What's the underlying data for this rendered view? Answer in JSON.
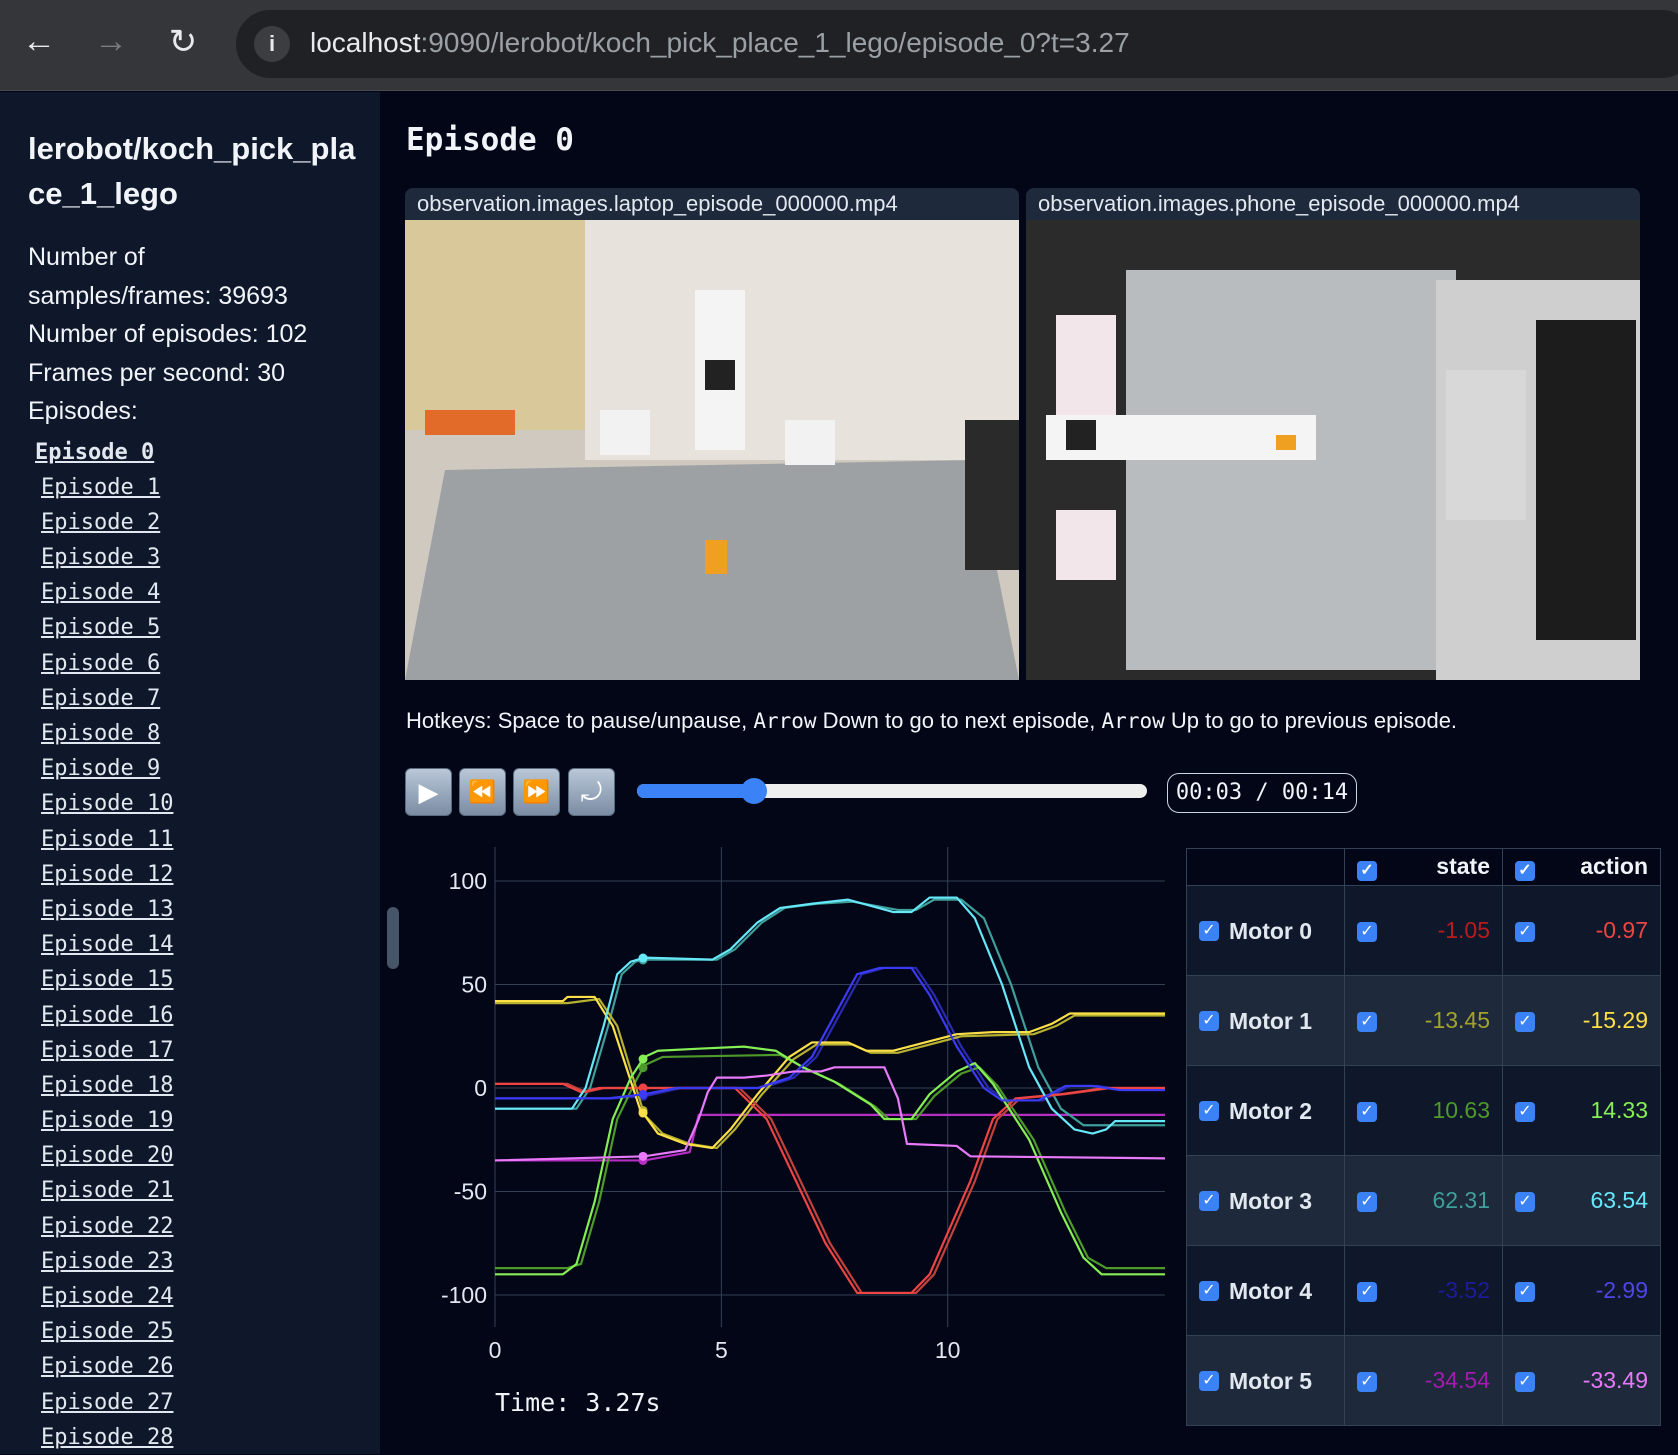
{
  "browser": {
    "url_host": "localhost",
    "url_rest": ":9090/lerobot/koch_pick_place_1_lego/episode_0?t=3.27",
    "back": "←",
    "forward": "→",
    "reload": "↻",
    "info": "i"
  },
  "sidebar": {
    "dataset_title": "lerobot/koch_pick_place_1_lego",
    "stats": [
      "Number of samples/frames: 39693",
      "Number of episodes: 102",
      "Frames per second: 30",
      "Episodes:"
    ],
    "episodes": [
      "Episode 0",
      "Episode 1",
      "Episode 2",
      "Episode 3",
      "Episode 4",
      "Episode 5",
      "Episode 6",
      "Episode 7",
      "Episode 8",
      "Episode 9",
      "Episode 10",
      "Episode 11",
      "Episode 12",
      "Episode 13",
      "Episode 14",
      "Episode 15",
      "Episode 16",
      "Episode 17",
      "Episode 18",
      "Episode 19",
      "Episode 20",
      "Episode 21",
      "Episode 22",
      "Episode 23",
      "Episode 24",
      "Episode 25",
      "Episode 26",
      "Episode 27",
      "Episode 28"
    ],
    "active_episode": 0
  },
  "main": {
    "title": "Episode 0",
    "videos": [
      {
        "label": "observation.images.laptop_episode_000000.mp4"
      },
      {
        "label": "observation.images.phone_episode_000000.mp4"
      }
    ],
    "hotkeys": {
      "t1": "Hotkeys: Space to pause/unpause, ",
      "k1": "Arrow",
      "t2": " Down to go to next episode, ",
      "k2": "Arrow",
      "t3": " Up to go to previous episode."
    },
    "player": {
      "play": "▶",
      "rewind": "⏪",
      "forward": "⏩",
      "loop": "⤾",
      "progress": 0.23,
      "time": "00:03 / 00:14"
    },
    "time_label": "Time: 3.27s"
  },
  "table": {
    "headers": [
      "",
      "state",
      "action"
    ],
    "rows": [
      {
        "name": "Motor 0",
        "state": "-1.05",
        "action": "-0.97",
        "state_color": "#b91c1c",
        "action_color": "#ef4444"
      },
      {
        "name": "Motor 1",
        "state": "-13.45",
        "action": "-15.29",
        "state_color": "#a3a329",
        "action_color": "#fde047"
      },
      {
        "name": "Motor 2",
        "state": "10.63",
        "action": "14.33",
        "state_color": "#4d9a2a",
        "action_color": "#86ef55"
      },
      {
        "name": "Motor 3",
        "state": "62.31",
        "action": "63.54",
        "state_color": "#3f9f9a",
        "action_color": "#67e8f9"
      },
      {
        "name": "Motor 4",
        "state": "-3.52",
        "action": "-2.99",
        "state_color": "#1e1b9b",
        "action_color": "#4f46e5"
      },
      {
        "name": "Motor 5",
        "state": "-34.54",
        "action": "-33.49",
        "state_color": "#a21caf",
        "action_color": "#e879f9"
      }
    ]
  },
  "chart_data": {
    "type": "line",
    "xlabel": "",
    "ylabel": "",
    "xlim": [
      0,
      14.8
    ],
    "ylim": [
      -120,
      112
    ],
    "xticks": [
      0,
      5,
      10
    ],
    "yticks": [
      100,
      50,
      0,
      -50,
      -100
    ],
    "grid": true,
    "cursor_x": 3.27,
    "series": [
      {
        "motor": 0,
        "kind": "action",
        "color": "#ef4444",
        "points": [
          [
            0,
            2
          ],
          [
            1.5,
            2
          ],
          [
            1.9,
            -2
          ],
          [
            2.3,
            0
          ],
          [
            5.3,
            0
          ],
          [
            6,
            -15
          ],
          [
            7.3,
            -75
          ],
          [
            8,
            -99
          ],
          [
            9.2,
            -99
          ],
          [
            9.6,
            -90
          ],
          [
            10.5,
            -45
          ],
          [
            11,
            -15
          ],
          [
            11.5,
            -5
          ],
          [
            12.5,
            -3
          ],
          [
            13.5,
            0
          ],
          [
            14.8,
            0
          ]
        ]
      },
      {
        "motor": 1,
        "kind": "action",
        "color": "#fde047",
        "points": [
          [
            0,
            42
          ],
          [
            1.5,
            42
          ],
          [
            1.6,
            44
          ],
          [
            2.2,
            44
          ],
          [
            2.6,
            30
          ],
          [
            3.2,
            -10
          ],
          [
            3.6,
            -22
          ],
          [
            4.2,
            -27
          ],
          [
            4.8,
            -29
          ],
          [
            5.2,
            -20
          ],
          [
            5.8,
            -3
          ],
          [
            6.5,
            15
          ],
          [
            7,
            22
          ],
          [
            7.8,
            22
          ],
          [
            8.2,
            18
          ],
          [
            8.8,
            18
          ],
          [
            9.5,
            22
          ],
          [
            10.2,
            26
          ],
          [
            11,
            27
          ],
          [
            11.8,
            27
          ],
          [
            12.3,
            31
          ],
          [
            12.7,
            36
          ],
          [
            14.8,
            36
          ]
        ]
      },
      {
        "motor": 2,
        "kind": "action",
        "color": "#86ef55",
        "points": [
          [
            0,
            -90
          ],
          [
            1.5,
            -90
          ],
          [
            1.8,
            -85
          ],
          [
            2.2,
            -55
          ],
          [
            2.6,
            -15
          ],
          [
            3,
            5
          ],
          [
            3.3,
            15
          ],
          [
            3.6,
            18
          ],
          [
            4.5,
            19
          ],
          [
            5.5,
            20
          ],
          [
            6.2,
            18
          ],
          [
            6.8,
            10
          ],
          [
            7.5,
            3
          ],
          [
            8.3,
            -8
          ],
          [
            8.6,
            -15
          ],
          [
            9.2,
            -15
          ],
          [
            9.6,
            -3
          ],
          [
            10.2,
            8
          ],
          [
            10.6,
            12
          ],
          [
            11,
            2
          ],
          [
            11.8,
            -25
          ],
          [
            12.5,
            -60
          ],
          [
            13,
            -82
          ],
          [
            13.4,
            -90
          ],
          [
            14.8,
            -90
          ]
        ]
      },
      {
        "motor": 3,
        "kind": "action",
        "color": "#67e8f9",
        "points": [
          [
            0,
            -10
          ],
          [
            1.7,
            -10
          ],
          [
            2,
            0
          ],
          [
            2.4,
            30
          ],
          [
            2.7,
            55
          ],
          [
            3,
            61
          ],
          [
            3.3,
            63
          ],
          [
            4.8,
            62
          ],
          [
            5.2,
            67
          ],
          [
            5.8,
            80
          ],
          [
            6.3,
            87
          ],
          [
            7,
            89
          ],
          [
            7.8,
            91
          ],
          [
            8.3,
            88
          ],
          [
            8.8,
            85
          ],
          [
            9.2,
            85
          ],
          [
            9.6,
            92
          ],
          [
            10.2,
            92
          ],
          [
            10.6,
            82
          ],
          [
            11.2,
            50
          ],
          [
            11.8,
            10
          ],
          [
            12.3,
            -10
          ],
          [
            12.8,
            -20
          ],
          [
            13.2,
            -22
          ],
          [
            13.5,
            -20
          ],
          [
            13.7,
            -16
          ],
          [
            14.8,
            -16
          ]
        ]
      },
      {
        "motor": 4,
        "kind": "action",
        "color": "#3b3bf5",
        "points": [
          [
            0,
            -5
          ],
          [
            2.5,
            -5
          ],
          [
            3.3,
            -3
          ],
          [
            4,
            0
          ],
          [
            5.8,
            0
          ],
          [
            6.5,
            5
          ],
          [
            7,
            15
          ],
          [
            7.5,
            35
          ],
          [
            8,
            55
          ],
          [
            8.5,
            58
          ],
          [
            9.2,
            58
          ],
          [
            9.6,
            45
          ],
          [
            10.2,
            20
          ],
          [
            10.8,
            0
          ],
          [
            11.2,
            -6
          ],
          [
            12,
            -6
          ],
          [
            12.6,
            1
          ],
          [
            13.2,
            1
          ],
          [
            13.8,
            -1
          ],
          [
            14.8,
            -1
          ]
        ]
      },
      {
        "motor": 5,
        "kind": "action",
        "color": "#e879f9",
        "points": [
          [
            0,
            -35
          ],
          [
            3.3,
            -33
          ],
          [
            4.2,
            -30
          ],
          [
            4.5,
            -15
          ],
          [
            4.7,
            -2
          ],
          [
            4.9,
            5
          ],
          [
            5.5,
            5
          ],
          [
            6,
            6
          ],
          [
            6.6,
            8
          ],
          [
            7.2,
            8
          ],
          [
            7.5,
            10
          ],
          [
            8.6,
            10
          ],
          [
            8.9,
            -5
          ],
          [
            9.1,
            -27
          ],
          [
            10.2,
            -28
          ],
          [
            10.5,
            -33
          ],
          [
            14.8,
            -34
          ]
        ]
      },
      {
        "motor": 0,
        "kind": "state",
        "color": "#c2413a",
        "points": [
          [
            0,
            2
          ],
          [
            1.6,
            2
          ],
          [
            2,
            -2
          ],
          [
            2.4,
            0
          ],
          [
            5.4,
            0
          ],
          [
            6.1,
            -15
          ],
          [
            7.4,
            -75
          ],
          [
            8.1,
            -99
          ],
          [
            9.3,
            -99
          ],
          [
            9.7,
            -90
          ],
          [
            10.6,
            -45
          ],
          [
            11.1,
            -15
          ],
          [
            11.6,
            -5
          ],
          [
            12.6,
            -3
          ],
          [
            13.6,
            0
          ],
          [
            14.8,
            0
          ]
        ]
      },
      {
        "motor": 1,
        "kind": "state",
        "color": "#b5b030",
        "points": [
          [
            0,
            41
          ],
          [
            1.6,
            41
          ],
          [
            2.3,
            43
          ],
          [
            2.7,
            30
          ],
          [
            3.3,
            -13
          ],
          [
            3.7,
            -22
          ],
          [
            4.3,
            -27
          ],
          [
            4.9,
            -29
          ],
          [
            5.3,
            -20
          ],
          [
            5.9,
            -3
          ],
          [
            6.6,
            14
          ],
          [
            7.1,
            21
          ],
          [
            7.9,
            21
          ],
          [
            8.3,
            17
          ],
          [
            8.9,
            17
          ],
          [
            9.6,
            21
          ],
          [
            10.3,
            25
          ],
          [
            11.9,
            26
          ],
          [
            12.4,
            30
          ],
          [
            12.8,
            35
          ],
          [
            14.8,
            35
          ]
        ]
      },
      {
        "motor": 2,
        "kind": "state",
        "color": "#4d9a2a",
        "points": [
          [
            0,
            -87
          ],
          [
            1.6,
            -87
          ],
          [
            1.9,
            -85
          ],
          [
            2.3,
            -55
          ],
          [
            2.7,
            -15
          ],
          [
            3.1,
            3
          ],
          [
            3.3,
            11
          ],
          [
            3.7,
            15
          ],
          [
            6.3,
            16
          ],
          [
            6.9,
            9
          ],
          [
            7.6,
            2
          ],
          [
            8.4,
            -9
          ],
          [
            8.7,
            -15
          ],
          [
            9.3,
            -15
          ],
          [
            9.7,
            -4
          ],
          [
            10.3,
            7
          ],
          [
            10.7,
            10
          ],
          [
            11.1,
            1
          ],
          [
            11.9,
            -25
          ],
          [
            12.6,
            -60
          ],
          [
            13.1,
            -82
          ],
          [
            13.5,
            -87
          ],
          [
            14.8,
            -87
          ]
        ]
      },
      {
        "motor": 3,
        "kind": "state",
        "color": "#3f9f9a",
        "points": [
          [
            0,
            -10
          ],
          [
            1.8,
            -10
          ],
          [
            2.1,
            0
          ],
          [
            2.5,
            30
          ],
          [
            2.8,
            55
          ],
          [
            3.1,
            61
          ],
          [
            3.3,
            62
          ],
          [
            4.9,
            62
          ],
          [
            5.3,
            67
          ],
          [
            5.9,
            80
          ],
          [
            6.4,
            87
          ],
          [
            7.1,
            89
          ],
          [
            7.9,
            90
          ],
          [
            8.4,
            88
          ],
          [
            8.9,
            86
          ],
          [
            9.3,
            86
          ],
          [
            9.7,
            91
          ],
          [
            10.3,
            91
          ],
          [
            10.8,
            82
          ],
          [
            11.4,
            50
          ],
          [
            12,
            10
          ],
          [
            12.5,
            -10
          ],
          [
            13,
            -18
          ],
          [
            14.8,
            -18
          ]
        ]
      },
      {
        "motor": 4,
        "kind": "state",
        "color": "#2a2ab0",
        "points": [
          [
            0,
            -5
          ],
          [
            2.6,
            -5
          ],
          [
            3.3,
            -4
          ],
          [
            4.1,
            0
          ],
          [
            5.9,
            0
          ],
          [
            6.6,
            5
          ],
          [
            7.1,
            15
          ],
          [
            7.6,
            35
          ],
          [
            8.1,
            55
          ],
          [
            8.6,
            58
          ],
          [
            9.3,
            58
          ],
          [
            9.7,
            45
          ],
          [
            10.3,
            20
          ],
          [
            10.9,
            0
          ],
          [
            11.3,
            -6
          ],
          [
            12.1,
            -6
          ],
          [
            12.7,
            1
          ],
          [
            13.3,
            1
          ],
          [
            13.9,
            -1
          ],
          [
            14.8,
            -1
          ]
        ]
      },
      {
        "motor": 5,
        "kind": "state",
        "color": "#b72ec4",
        "points": [
          [
            0,
            -35
          ],
          [
            3.3,
            -35
          ],
          [
            4.3,
            -31
          ],
          [
            4.5,
            -13
          ],
          [
            4.7,
            -13
          ],
          [
            8.6,
            -13
          ],
          [
            8.8,
            -13
          ],
          [
            14.8,
            -13
          ]
        ]
      }
    ]
  },
  "colors": {
    "background": "#020617",
    "sidebar": "#0f172a",
    "accent": "#3b82f6"
  }
}
